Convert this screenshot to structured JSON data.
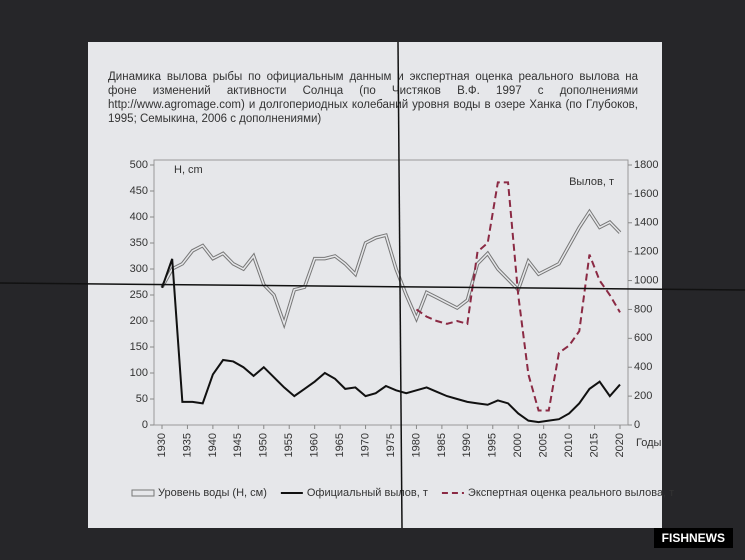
{
  "chart_data": {
    "type": "line",
    "title": "Динамика вылова рыбы по официальным данным и экспертная оценка реального вылова на фоне изменений активности Солнца (по Чистяков В.Ф. 1997 с дополнениями http://www.agromage.com) и долгопериодных колебаний уровня воды в озере Ханка (по Глубоков, 1995; Семыкина, 2006 с дополнениями)",
    "y_label": "Н, cm",
    "y2_label": "Вылов, т",
    "x_label": "Годы",
    "x": [
      1930,
      1932,
      1934,
      1936,
      1938,
      1940,
      1942,
      1944,
      1946,
      1948,
      1950,
      1952,
      1954,
      1956,
      1958,
      1960,
      1962,
      1964,
      1966,
      1968,
      1970,
      1972,
      1974,
      1976,
      1978,
      1980,
      1982,
      1984,
      1986,
      1988,
      1990,
      1992,
      1994,
      1996,
      1998,
      2000,
      2002,
      2004,
      2006,
      2008,
      2010,
      2012,
      2014,
      2016,
      2018,
      2020
    ],
    "xlim": [
      1930,
      2020
    ],
    "xticks": [
      1930,
      1935,
      1940,
      1945,
      1950,
      1955,
      1960,
      1965,
      1970,
      1975,
      1980,
      1985,
      1990,
      1995,
      2000,
      2005,
      2010,
      2015,
      2020
    ],
    "ylim": [
      0,
      500
    ],
    "yticks": [
      0,
      50,
      100,
      150,
      200,
      250,
      300,
      350,
      400,
      450,
      500
    ],
    "y2lim": [
      0,
      1800
    ],
    "y2ticks": [
      0,
      200,
      400,
      600,
      800,
      1000,
      1200,
      1400,
      1600,
      1800
    ],
    "series": [
      {
        "name": "Уровень воды (Н, см)",
        "color": "#777777",
        "style": "double",
        "values": [
          265,
          300,
          310,
          335,
          345,
          320,
          330,
          310,
          300,
          325,
          270,
          250,
          195,
          260,
          265,
          320,
          320,
          325,
          310,
          290,
          350,
          360,
          365,
          300,
          250,
          205,
          255,
          245,
          235,
          225,
          240,
          310,
          330,
          300,
          280,
          260,
          315,
          290,
          300,
          310,
          345,
          380,
          410,
          380,
          390,
          370
        ]
      },
      {
        "name": "Официальный вылов, т",
        "color": "#111111",
        "style": "solid",
        "axis": "y2",
        "values": [
          950,
          1150,
          160,
          160,
          150,
          350,
          450,
          440,
          400,
          340,
          400,
          330,
          260,
          200,
          250,
          300,
          360,
          320,
          250,
          260,
          200,
          220,
          270,
          240,
          220,
          240,
          260,
          230,
          200,
          180,
          160,
          150,
          140,
          170,
          150,
          80,
          30,
          20,
          30,
          40,
          80,
          150,
          250,
          300,
          200,
          280
        ]
      },
      {
        "name": "Экспертная оценка реального вылова, т",
        "color": "#8b2a44",
        "style": "dashed",
        "axis": "y2",
        "values": [
          null,
          null,
          null,
          null,
          null,
          null,
          null,
          null,
          null,
          null,
          null,
          null,
          null,
          null,
          null,
          null,
          null,
          null,
          null,
          null,
          null,
          null,
          null,
          null,
          null,
          800,
          750,
          720,
          700,
          720,
          700,
          1200,
          1260,
          1680,
          1680,
          900,
          350,
          100,
          100,
          500,
          550,
          650,
          1180,
          1000,
          900,
          780
        ]
      }
    ]
  },
  "watermark": "FISHNEWS"
}
